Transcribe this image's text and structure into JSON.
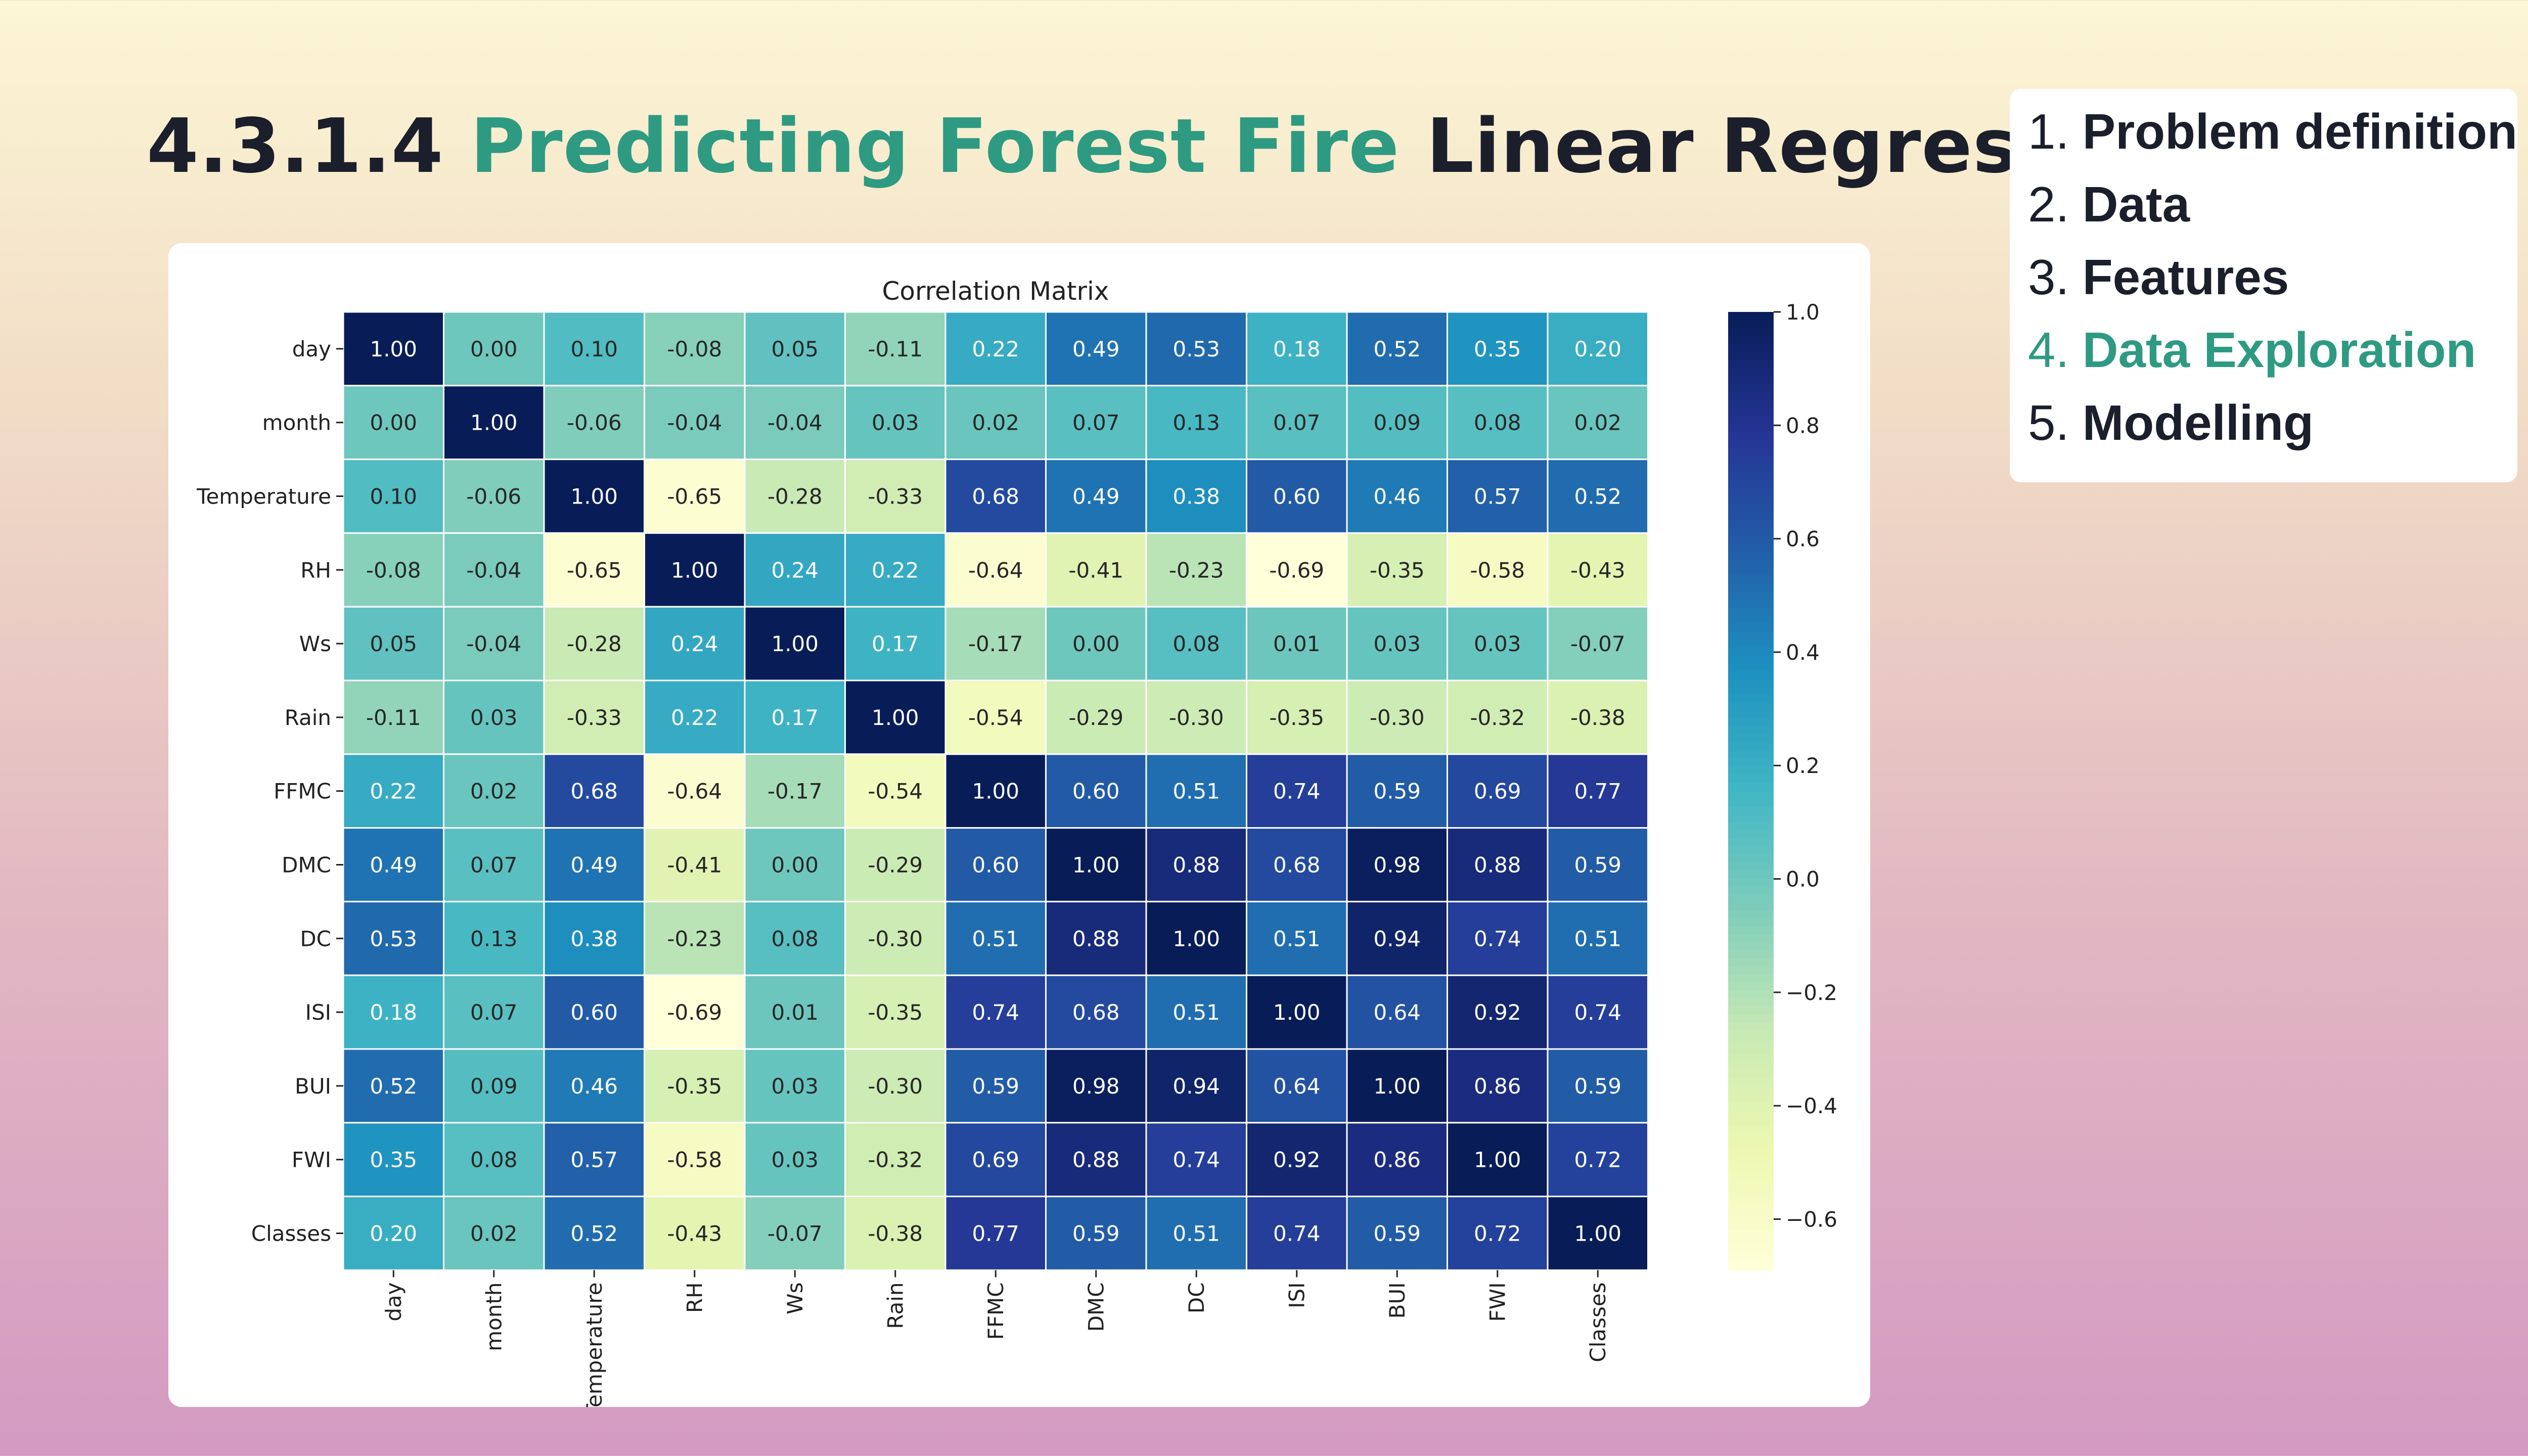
{
  "slide": {
    "title_number": "4.3.1.4",
    "title_accent": "Predicting Forest Fire",
    "title_rest": "Linear Regression"
  },
  "outline": [
    {
      "num": "1.",
      "label": "Problem definition",
      "active": false
    },
    {
      "num": "2.",
      "label": "Data",
      "active": false
    },
    {
      "num": "3.",
      "label": "Features",
      "active": false
    },
    {
      "num": "4.",
      "label": "Data Exploration",
      "active": true
    },
    {
      "num": "5.",
      "label": "Modelling",
      "active": false
    }
  ],
  "colors": {
    "title_accent": "#2e9a82",
    "active_outline": "#2e9a82",
    "text_dark": "#1b1f2b",
    "colormap": "YlGnBu"
  },
  "chart_data": {
    "type": "heatmap",
    "title": "Correlation Matrix",
    "labels": [
      "day",
      "month",
      "Temperature",
      "RH",
      "Ws",
      "Rain",
      "FFMC",
      "DMC",
      "DC",
      "ISI",
      "BUI",
      "FWI",
      "Classes"
    ],
    "values": [
      [
        1.0,
        -0.0,
        0.1,
        -0.08,
        0.05,
        -0.11,
        0.22,
        0.49,
        0.53,
        0.18,
        0.52,
        0.35,
        0.2
      ],
      [
        -0.0,
        1.0,
        -0.06,
        -0.04,
        -0.04,
        0.03,
        0.02,
        0.07,
        0.13,
        0.07,
        0.09,
        0.08,
        0.02
      ],
      [
        0.1,
        -0.06,
        1.0,
        -0.65,
        -0.28,
        -0.33,
        0.68,
        0.49,
        0.38,
        0.6,
        0.46,
        0.57,
        0.52
      ],
      [
        -0.08,
        -0.04,
        -0.65,
        1.0,
        0.24,
        0.22,
        -0.64,
        -0.41,
        -0.23,
        -0.69,
        -0.35,
        -0.58,
        -0.43
      ],
      [
        0.05,
        -0.04,
        -0.28,
        0.24,
        1.0,
        0.17,
        -0.17,
        -0.0,
        0.08,
        0.01,
        0.03,
        0.03,
        -0.07
      ],
      [
        -0.11,
        0.03,
        -0.33,
        0.22,
        0.17,
        1.0,
        -0.54,
        -0.29,
        -0.3,
        -0.35,
        -0.3,
        -0.32,
        -0.38
      ],
      [
        0.22,
        0.02,
        0.68,
        -0.64,
        -0.17,
        -0.54,
        1.0,
        0.6,
        0.51,
        0.74,
        0.59,
        0.69,
        0.77
      ],
      [
        0.49,
        0.07,
        0.49,
        -0.41,
        -0.0,
        -0.29,
        0.6,
        1.0,
        0.88,
        0.68,
        0.98,
        0.88,
        0.59
      ],
      [
        0.53,
        0.13,
        0.38,
        -0.23,
        0.08,
        -0.3,
        0.51,
        0.88,
        1.0,
        0.51,
        0.94,
        0.74,
        0.51
      ],
      [
        0.18,
        0.07,
        0.6,
        -0.69,
        0.01,
        -0.35,
        0.74,
        0.68,
        0.51,
        1.0,
        0.64,
        0.92,
        0.74
      ],
      [
        0.52,
        0.09,
        0.46,
        -0.35,
        0.03,
        -0.3,
        0.59,
        0.98,
        0.94,
        0.64,
        1.0,
        0.86,
        0.59
      ],
      [
        0.35,
        0.08,
        0.57,
        -0.58,
        0.03,
        -0.32,
        0.69,
        0.88,
        0.74,
        0.92,
        0.86,
        1.0,
        0.72
      ],
      [
        0.2,
        0.02,
        0.52,
        -0.43,
        -0.07,
        -0.38,
        0.77,
        0.59,
        0.51,
        0.74,
        0.59,
        0.72,
        1.0
      ]
    ],
    "value_range": [
      -0.69,
      1.0
    ],
    "colorbar_ticks": [
      "1.0",
      "0.8",
      "0.6",
      "0.4",
      "0.2",
      "0.0",
      "−0.2",
      "−0.4",
      "−0.6"
    ],
    "colorbar_tick_values": [
      1.0,
      0.8,
      0.6,
      0.4,
      0.2,
      0.0,
      -0.2,
      -0.4,
      -0.6
    ],
    "annotate": true,
    "gridlines": "white"
  }
}
